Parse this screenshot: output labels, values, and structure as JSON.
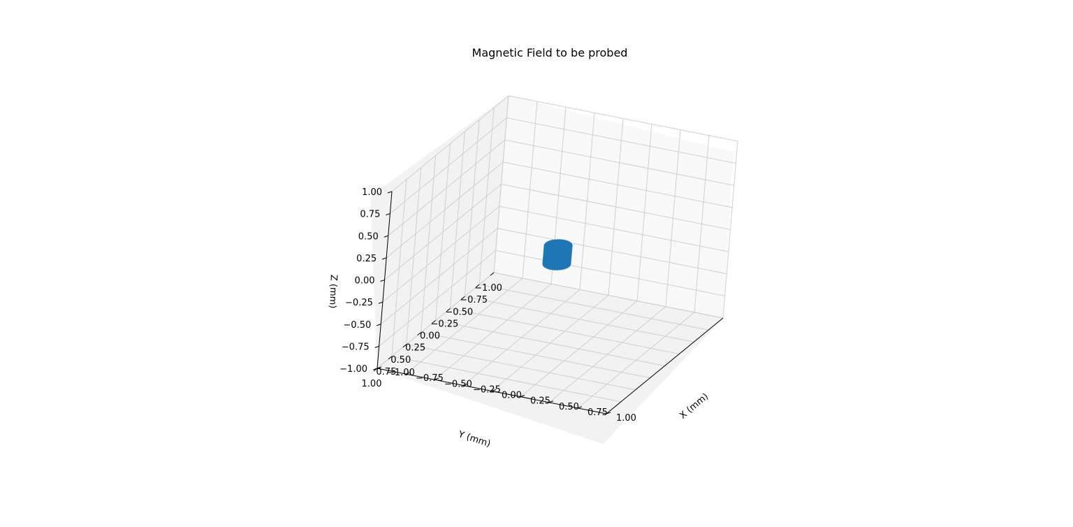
{
  "chart_data": {
    "type": "scatter",
    "projection": "3d",
    "title": "Magnetic Field to be probed",
    "xlabel": "X (mm)",
    "ylabel": "Y (mm)",
    "zlabel": "Z (mm)",
    "xlim": [
      -1.0,
      1.0
    ],
    "ylim": [
      -1.0,
      1.0
    ],
    "zlim": [
      -1.0,
      1.0
    ],
    "x_ticks": [
      "−1.00",
      "−0.75",
      "−0.50",
      "−0.25",
      "0.00",
      "0.25",
      "0.50",
      "0.75",
      "1.00"
    ],
    "y_ticks": [
      "−1.00",
      "−0.75",
      "−0.50",
      "−0.25",
      "0.00",
      "0.25",
      "0.50",
      "0.75",
      "1.00"
    ],
    "z_ticks": [
      "−1.00",
      "−0.75",
      "−0.50",
      "−0.25",
      "0.00",
      "0.25",
      "0.50",
      "0.75",
      "1.00"
    ],
    "grid": true,
    "series": [
      {
        "shape": "cylinder of points",
        "center": [
          0.0,
          0.0,
          0.0
        ],
        "radius": 0.1,
        "z_range": [
          -0.1,
          0.1
        ],
        "color": "#1f77b4"
      }
    ]
  }
}
